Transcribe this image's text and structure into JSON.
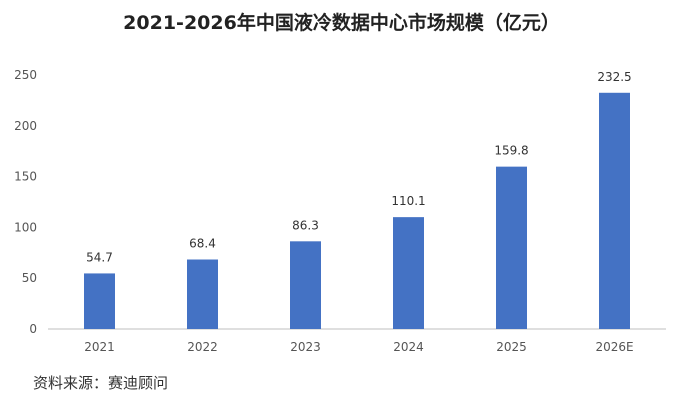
{
  "chart_data": {
    "type": "bar",
    "title": "2021-2026年中国液冷数据中心市场规模（亿元）",
    "categories": [
      "2021",
      "2022",
      "2023",
      "2024",
      "2025",
      "2026E"
    ],
    "series": [
      {
        "values": [
          54.7,
          68.4,
          86.3,
          110.1,
          159.8,
          232.5
        ]
      }
    ],
    "ylim": [
      0,
      250
    ],
    "yticks": [
      0,
      50,
      100,
      150,
      200,
      250
    ],
    "xlabel": "",
    "ylabel": "",
    "grid": false,
    "legend": "none",
    "bar_color": "#4472C4"
  },
  "source": "资料来源：赛迪顾问"
}
